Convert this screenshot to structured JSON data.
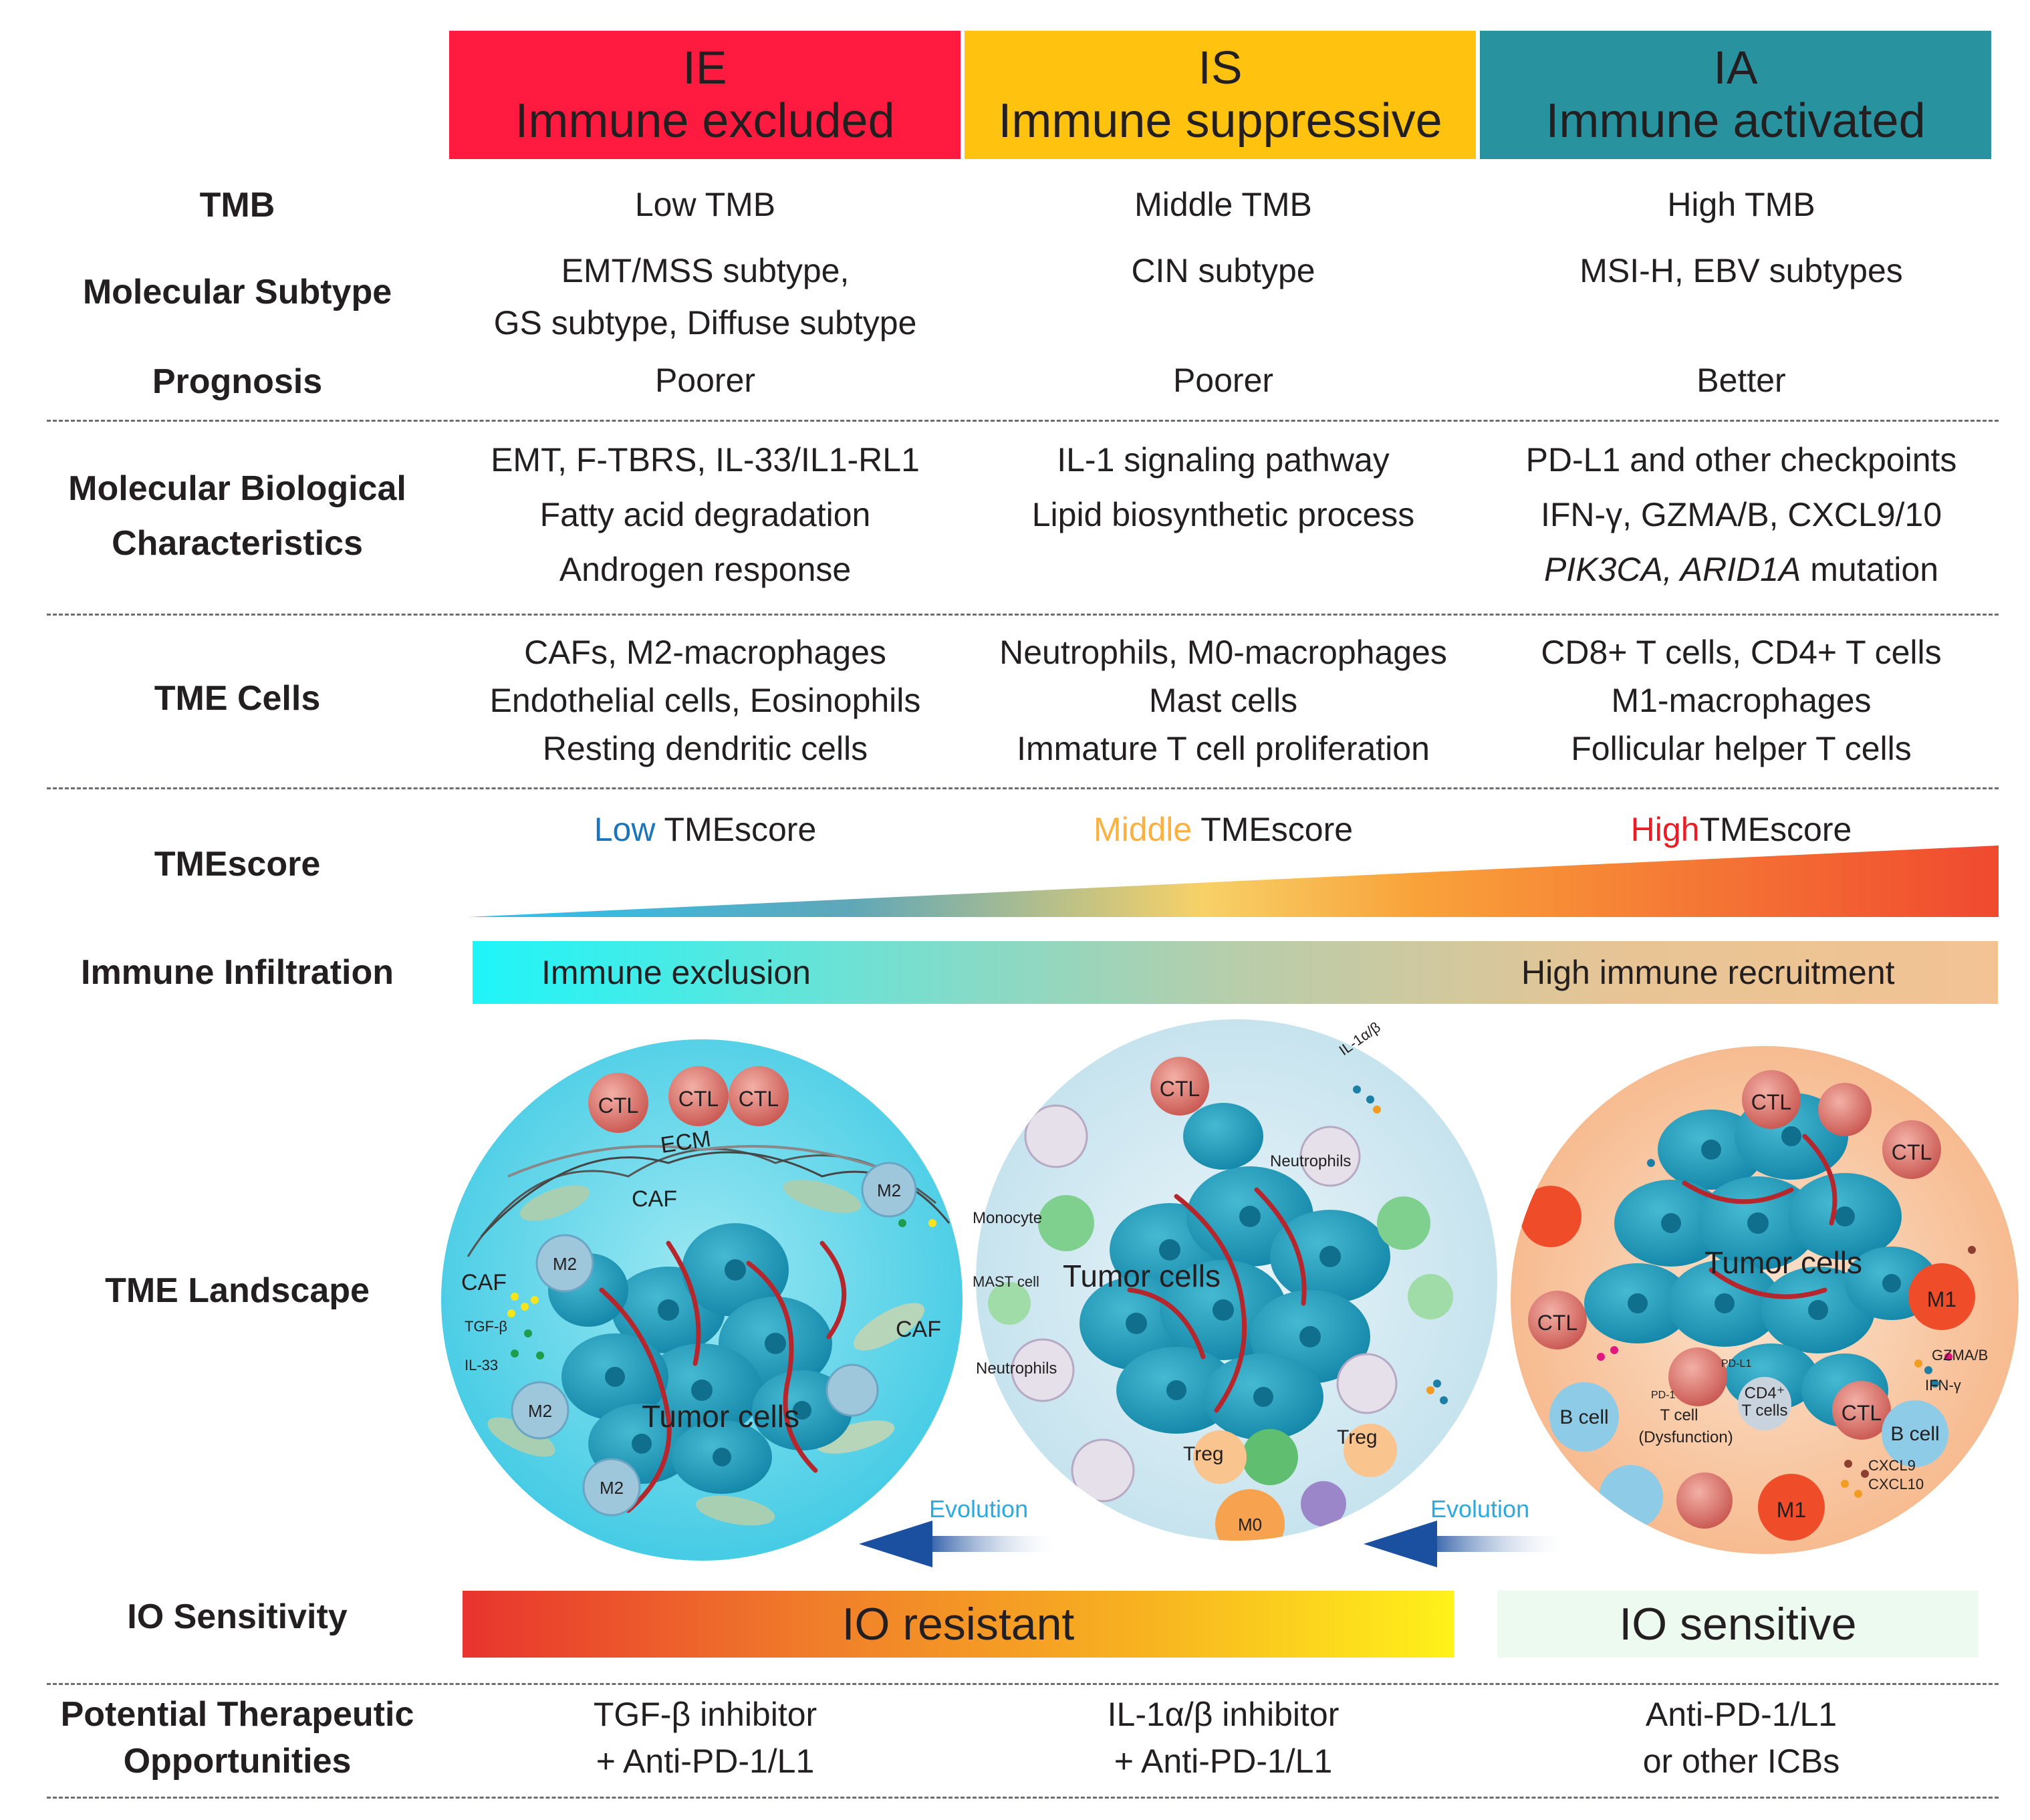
{
  "header": {
    "ie": {
      "code": "IE",
      "name": "Immune excluded",
      "color": "#ff1a40"
    },
    "is": {
      "code": "IS",
      "name": "Immune suppressive",
      "color": "#ffc20e"
    },
    "ia": {
      "code": "IA",
      "name": "Immune activated",
      "color": "#28929f"
    }
  },
  "rows": {
    "tmb": {
      "label": "TMB",
      "ie": "Low TMB",
      "is": "Middle TMB",
      "ia": "High TMB"
    },
    "subtype": {
      "label": "Molecular Subtype",
      "ie": [
        "EMT/MSS subtype,",
        "GS subtype, Diffuse subtype"
      ],
      "is": "CIN subtype",
      "ia": "MSI-H, EBV subtypes"
    },
    "prognosis": {
      "label": "Prognosis",
      "ie": "Poorer",
      "is": "Poorer",
      "ia": "Better"
    },
    "biology": {
      "label": [
        "Molecular Biological",
        "Characteristics"
      ],
      "ie": [
        "EMT, F-TBRS, IL-33/IL1-RL1",
        "Fatty acid degradation",
        "Androgen response"
      ],
      "is": [
        "IL-1 signaling pathway",
        "Lipid biosynthetic process"
      ],
      "ia": [
        "PD-L1 and other checkpoints",
        "IFN-γ, GZMA/B, CXCL9/10"
      ],
      "ia_mutation_genes": "PIK3CA, ARID1A",
      "ia_mutation_word": " mutation"
    },
    "cells": {
      "label": "TME Cells",
      "ie": [
        "CAFs, M2-macrophages",
        "Endothelial cells, Eosinophils",
        "Resting dendritic cells"
      ],
      "is": [
        "Neutrophils, M0-macrophages",
        "Mast cells",
        "Immature T cell proliferation"
      ],
      "ia": [
        "CD8+ T cells, CD4+ T cells",
        "M1-macrophages",
        "Follicular helper T cells"
      ]
    },
    "tmescore": {
      "label": "TMEscore",
      "ie_level": "Low",
      "is_level": "Middle",
      "ia_level": "High",
      "suffix": "TMEscore",
      "colors": {
        "low": "#1b75bc",
        "middle": "#fbb040",
        "high": "#ed1c24"
      }
    },
    "infiltration": {
      "label": "Immune Infiltration",
      "left": "Immune exclusion",
      "right": "High immune recruitment"
    },
    "landscape": {
      "label": "TME Landscape"
    },
    "io": {
      "label": "IO Sensitivity",
      "resistant": "IO resistant",
      "sensitive": "IO sensitive"
    },
    "therapy": {
      "label": [
        "Potential Therapeutic",
        "Opportunities"
      ],
      "ie": [
        "TGF-β inhibitor",
        "+ Anti-PD-1/L1"
      ],
      "is": [
        "IL-1α/β inhibitor",
        "+ Anti-PD-1/L1"
      ],
      "ia": [
        "Anti-PD-1/L1",
        "or other ICBs"
      ]
    }
  },
  "landscape_labels": {
    "ie": {
      "ctl": "CTL",
      "ecm": "ECM",
      "caf": "CAF",
      "m2": "M2",
      "tgf": "TGF-β",
      "il33": "IL-33",
      "tumor": "Tumor cells"
    },
    "is": {
      "ctl": "CTL",
      "il1": "IL-1α/β",
      "neutrophils": "Neutrophils",
      "monocyte": "Monocyte",
      "mast": "MAST cell",
      "tumor": "Tumor cells",
      "treg": "Treg",
      "m0": "M0"
    },
    "ia": {
      "ctl": "CTL",
      "tumor": "Tumor cells",
      "m1": "M1",
      "pdl1": "PD-L1",
      "pd1": "PD-1",
      "tcell": "T cell",
      "dysfunction": "(Dysfunction)",
      "cd4": "CD4⁺",
      "cd4b": "T cells",
      "bcell": "B cell",
      "gzma": "GZMA/B",
      "ifng": "IFN-γ",
      "cxcl9": "CXCL9",
      "cxcl10": "CXCL10"
    },
    "evolution": "Evolution"
  }
}
